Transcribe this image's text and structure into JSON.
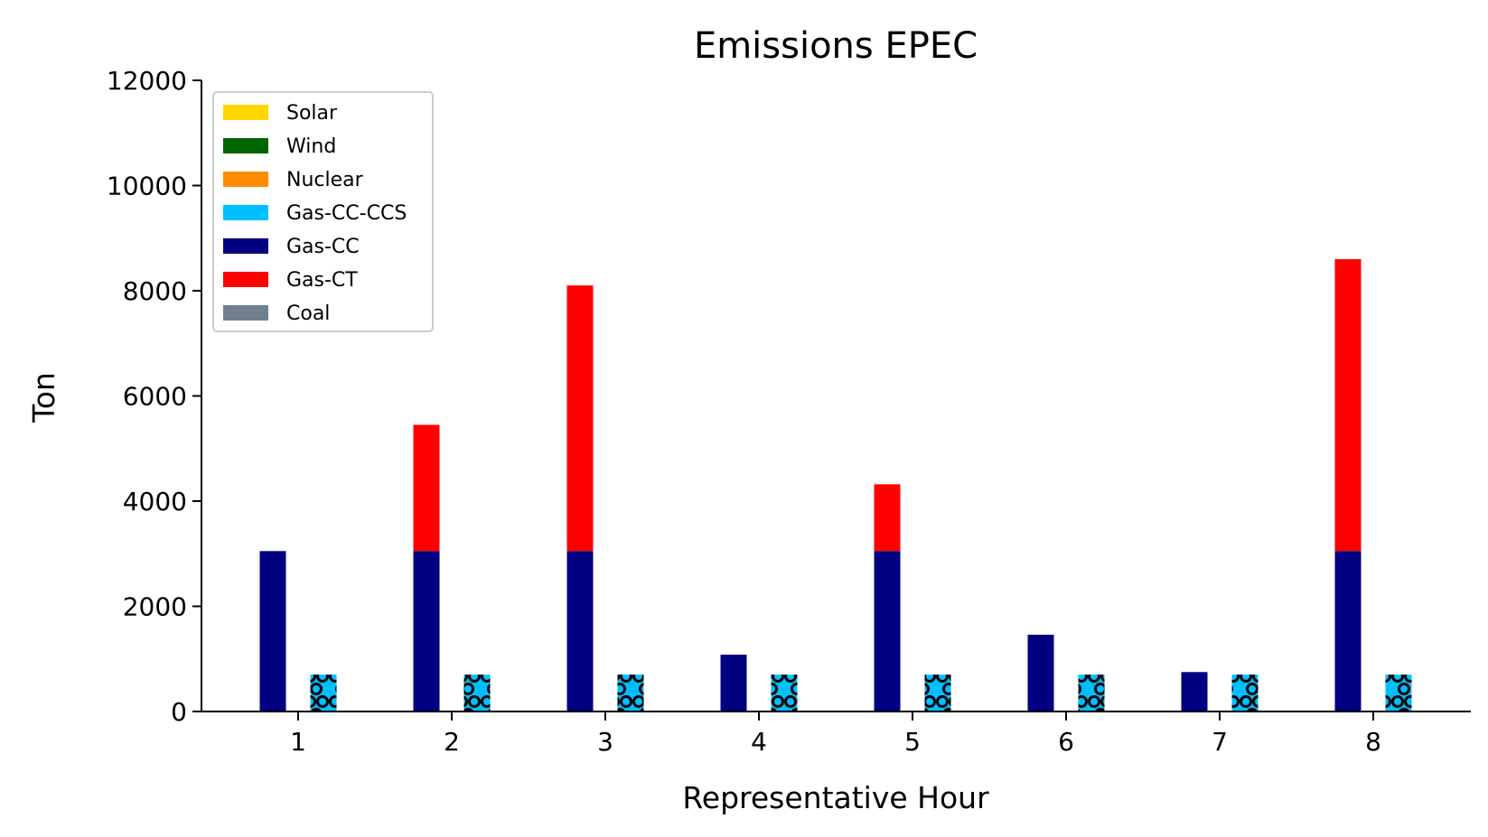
{
  "chart_data": {
    "type": "bar",
    "title": "Emissions EPEC",
    "xlabel": "Representative Hour",
    "ylabel": "Ton",
    "ylim": [
      0,
      12000
    ],
    "yticks": [
      0,
      2000,
      4000,
      6000,
      8000,
      10000,
      12000
    ],
    "categories": [
      "1",
      "2",
      "3",
      "4",
      "5",
      "6",
      "7",
      "8"
    ],
    "legend_position": "top-left",
    "grid": false,
    "legend": [
      {
        "name": "Solar",
        "color": "#FFD700"
      },
      {
        "name": "Wind",
        "color": "#006400"
      },
      {
        "name": "Nuclear",
        "color": "#FF8C00"
      },
      {
        "name": "Gas-CC-CCS",
        "color": "#00BFFF"
      },
      {
        "name": "Gas-CC",
        "color": "#000080"
      },
      {
        "name": "Gas-CT",
        "color": "#FF0000"
      },
      {
        "name": "Coal",
        "color": "#708090"
      }
    ],
    "stacks": [
      {
        "position": "left",
        "segments": [
          {
            "name": "Gas-CC",
            "color": "#000080",
            "values": [
              3050,
              3050,
              3050,
              1080,
              3050,
              1460,
              750,
              3050
            ]
          },
          {
            "name": "Gas-CT",
            "color": "#FF0000",
            "values": [
              0,
              2400,
              5050,
              0,
              1270,
              0,
              0,
              5550
            ]
          }
        ]
      },
      {
        "position": "right",
        "hatch": "circles",
        "segments": [
          {
            "name": "Gas-CC-CCS",
            "color": "#00BFFF",
            "values": [
              700,
              700,
              700,
              700,
              700,
              700,
              700,
              700
            ]
          }
        ]
      }
    ]
  }
}
